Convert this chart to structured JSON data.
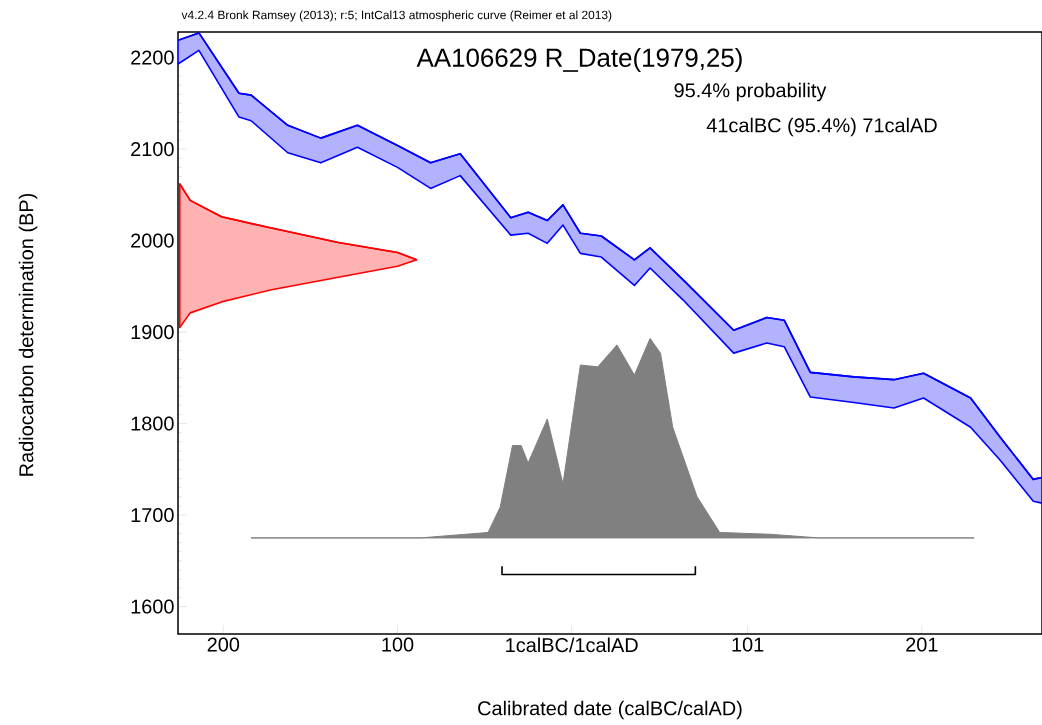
{
  "chart_data": {
    "type": "area",
    "title": "AA106629 R_Date(1979,25)",
    "subtitle": "95.4% probability",
    "xlabel": "Calibrated date (calBC/calAD)",
    "ylabel": "Radiocarbon determination (BP)",
    "annotations": [
      "v4.2.4 Bronk Ramsey (2013); r:5; IntCal13 atmospheric curve (Reimer et al 2013)",
      "41calBC (95.4%) 71calAD"
    ],
    "xlim": [
      -226,
      270
    ],
    "ylim": [
      1570,
      2228
    ],
    "xticks": [
      {
        "value": -200,
        "label": "200"
      },
      {
        "value": -100,
        "label": "100"
      },
      {
        "value": 0,
        "label": "1calBC/1calAD"
      },
      101,
      201
    ],
    "yticks": [
      1600,
      1700,
      1800,
      1900,
      2000,
      2100,
      2200
    ],
    "series": [
      {
        "type": "line",
        "color": "#0000ff",
        "x": [
          -226,
          -214,
          -191,
          -184,
          -163,
          -144,
          -123,
          -100,
          -81,
          -64,
          -35,
          -25,
          -14,
          -5,
          5,
          17,
          36,
          45,
          64,
          93,
          112,
          122,
          137,
          162,
          185,
          202,
          229,
          246,
          265,
          270
        ],
        "values": [
          2219,
          2227,
          2161,
          2159,
          2126,
          2112,
          2126,
          2104,
          2085,
          2095,
          2025,
          2031,
          2022,
          2039,
          2008,
          2005,
          1979,
          1992,
          1957,
          1902,
          1916,
          1913,
          1856,
          1851,
          1848,
          1855,
          1828,
          1785,
          1739,
          1741
        ],
        "upper": [
          2219,
          2227,
          2161,
          2159,
          2126,
          2112,
          2126,
          2104,
          2085,
          2095,
          2025,
          2031,
          2022,
          2039,
          2008,
          2005,
          1979,
          1992,
          1957,
          1902,
          1916,
          1913,
          1856,
          1851,
          1848,
          1855,
          1828,
          1785,
          1739,
          1741
        ],
        "lower": [
          2193,
          2208,
          2135,
          2131,
          2096,
          2085,
          2102,
          2080,
          2057,
          2071,
          2006,
          2008,
          1997,
          2017,
          1986,
          1982,
          1951,
          1970,
          1935,
          1877,
          1888,
          1884,
          1829,
          1823,
          1817,
          1828,
          1796,
          1760,
          1715,
          1713
        ]
      },
      {
        "type": "line",
        "color": "#ff0000",
        "x": [
          -225,
          -219,
          -201,
          -173,
          -134,
          -100,
          -89
        ],
        "values": [
          2062,
          2044,
          2026,
          2014,
          1998,
          1987,
          1979
        ],
        "upper": [
          2062,
          2044,
          2026,
          2014,
          1998,
          1987,
          1979
        ],
        "lower": [
          1905,
          1921,
          1933,
          1946,
          1960,
          1972,
          1979
        ]
      },
      {
        "color": "#808080",
        "x": [
          -184,
          -87,
          -48,
          -41,
          -34,
          -29,
          -25,
          -14,
          -5,
          5,
          15,
          26,
          36,
          45,
          51,
          58,
          72,
          85,
          114,
          142,
          231
        ],
        "values": [
          1675,
          1675,
          1681,
          1709,
          1776,
          1776,
          1757,
          1805,
          1734,
          1864,
          1862,
          1886,
          1853,
          1893,
          1877,
          1796,
          1720,
          1681,
          1679,
          1675,
          1675
        ]
      },
      {
        "type": "line",
        "color": "#000000",
        "x": [
          -40,
          -40,
          71,
          71
        ],
        "values": [
          1644,
          1635,
          1635,
          1644
        ]
      }
    ]
  }
}
